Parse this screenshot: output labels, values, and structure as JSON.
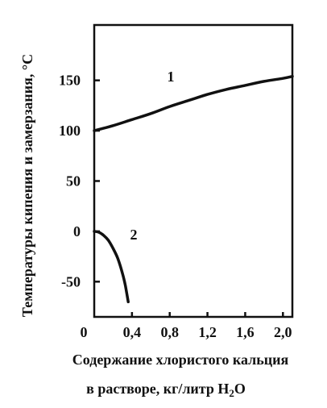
{
  "chart_data": {
    "type": "line",
    "ylabel": "Температуры кипения и замерзания, °С",
    "xlabel_line1": "Содержание хлористого кальция",
    "xlabel_line2_prefix": "в растворе, кг/литр H",
    "xlabel_line2_sub": "2",
    "xlabel_line2_suffix": "O",
    "xlim": [
      0,
      2.1
    ],
    "ylim": [
      -85,
      205
    ],
    "x_ticks": [
      0.4,
      0.8,
      1.2,
      1.6,
      2.0
    ],
    "x_tick_labels": [
      "0,4",
      "0,8",
      "1,2",
      "1,6",
      "2,0"
    ],
    "x_origin_label": "0",
    "y_ticks": [
      150,
      100,
      50,
      0,
      -50
    ],
    "y_tick_labels": [
      "150",
      "100",
      "50",
      "0",
      "-50"
    ],
    "series": [
      {
        "name": "1",
        "x": [
          0,
          0.2,
          0.4,
          0.6,
          0.8,
          1.0,
          1.2,
          1.4,
          1.6,
          1.8,
          2.0,
          2.1
        ],
        "y": [
          100,
          105,
          111,
          117,
          124,
          130,
          136,
          141,
          145,
          149,
          152,
          154
        ]
      },
      {
        "name": "2",
        "x": [
          0,
          0.05,
          0.1,
          0.15,
          0.2,
          0.25,
          0.3,
          0.33,
          0.36
        ],
        "y": [
          0,
          -1,
          -4,
          -9,
          -17,
          -27,
          -42,
          -54,
          -70
        ]
      }
    ],
    "grid": false,
    "legend": "none"
  }
}
